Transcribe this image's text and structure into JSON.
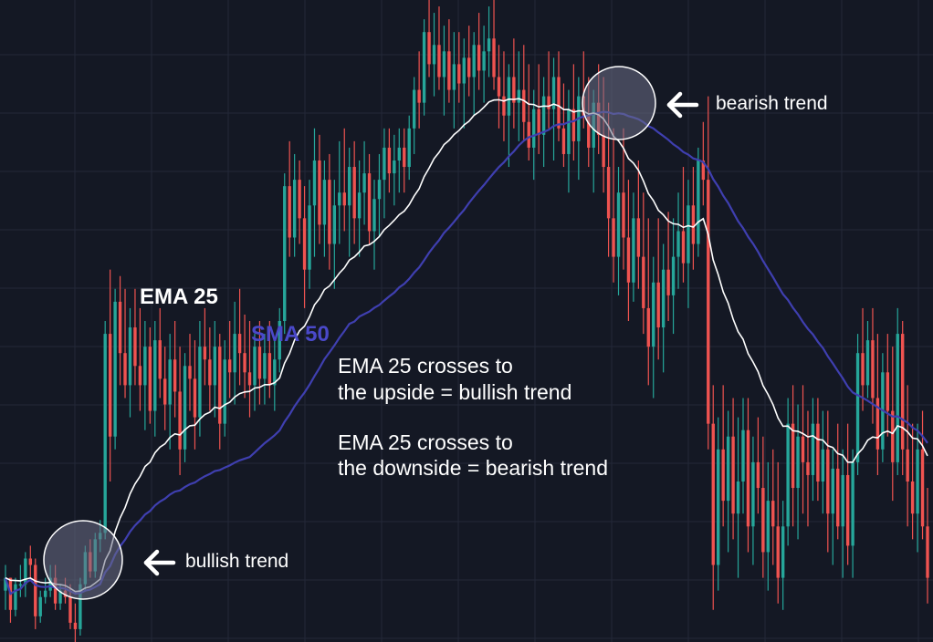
{
  "chart_data": {
    "type": "candlestick",
    "title": "",
    "xlabel": "",
    "ylabel": "",
    "axes_visible": false,
    "grid": true,
    "background": "#141824",
    "colors": {
      "up": "#26a69a",
      "down": "#ef5350",
      "ema": "#ffffff",
      "sma": "#3f3fb0",
      "circle_fill": "#6b7086"
    },
    "ylim": [
      0,
      100
    ],
    "indicators": [
      {
        "name": "EMA 25",
        "period": 25,
        "color": "#ffffff"
      },
      {
        "name": "SMA 50",
        "period": 50,
        "color": "#3f3fb0"
      }
    ],
    "candles": [
      [
        8,
        12,
        5,
        10
      ],
      [
        10,
        10,
        3,
        5
      ],
      [
        5,
        10,
        4,
        9
      ],
      [
        9,
        12,
        7,
        9
      ],
      [
        9,
        14,
        7,
        13
      ],
      [
        13,
        15,
        10,
        12
      ],
      [
        12,
        13,
        2,
        4
      ],
      [
        4,
        8,
        3,
        7
      ],
      [
        7,
        10,
        6,
        8
      ],
      [
        8,
        12,
        7,
        10
      ],
      [
        10,
        12,
        5,
        6
      ],
      [
        6,
        9,
        5,
        8
      ],
      [
        8,
        10,
        6,
        7
      ],
      [
        7,
        9,
        2,
        3
      ],
      [
        3,
        6,
        0,
        2
      ],
      [
        2,
        10,
        1,
        9
      ],
      [
        9,
        15,
        8,
        14
      ],
      [
        14,
        16,
        10,
        11
      ],
      [
        11,
        17,
        10,
        16
      ],
      [
        16,
        19,
        14,
        17
      ],
      [
        17,
        50,
        16,
        48
      ],
      [
        48,
        58,
        25,
        32
      ],
      [
        32,
        55,
        30,
        53
      ],
      [
        53,
        57,
        40,
        45
      ],
      [
        45,
        55,
        38,
        40
      ],
      [
        40,
        52,
        35,
        49
      ],
      [
        49,
        55,
        40,
        43
      ],
      [
        43,
        52,
        36,
        40
      ],
      [
        40,
        50,
        33,
        46
      ],
      [
        46,
        49,
        34,
        36
      ],
      [
        36,
        50,
        32,
        47
      ],
      [
        47,
        52,
        38,
        41
      ],
      [
        41,
        46,
        33,
        37
      ],
      [
        37,
        48,
        30,
        44
      ],
      [
        44,
        50,
        35,
        39
      ],
      [
        39,
        46,
        26,
        30
      ],
      [
        30,
        45,
        28,
        43
      ],
      [
        43,
        48,
        36,
        41
      ],
      [
        41,
        47,
        30,
        35
      ],
      [
        35,
        50,
        32,
        46
      ],
      [
        46,
        52,
        40,
        44
      ],
      [
        44,
        49,
        36,
        40
      ],
      [
        40,
        50,
        35,
        46
      ],
      [
        46,
        48,
        30,
        34
      ],
      [
        34,
        47,
        32,
        44
      ],
      [
        44,
        50,
        38,
        42
      ],
      [
        42,
        53,
        37,
        48
      ],
      [
        48,
        55,
        40,
        45
      ],
      [
        45,
        51,
        38,
        42
      ],
      [
        42,
        50,
        35,
        40
      ],
      [
        40,
        48,
        36,
        46
      ],
      [
        46,
        50,
        37,
        41
      ],
      [
        41,
        48,
        37,
        45
      ],
      [
        45,
        50,
        38,
        40
      ],
      [
        40,
        47,
        36,
        44
      ],
      [
        44,
        52,
        42,
        50
      ],
      [
        50,
        73,
        48,
        71
      ],
      [
        71,
        78,
        60,
        63
      ],
      [
        63,
        76,
        60,
        72
      ],
      [
        72,
        75,
        62,
        66
      ],
      [
        66,
        71,
        52,
        58
      ],
      [
        58,
        72,
        55,
        68
      ],
      [
        68,
        80,
        60,
        75
      ],
      [
        75,
        79,
        62,
        65
      ],
      [
        65,
        75,
        60,
        72
      ],
      [
        72,
        76,
        58,
        62
      ],
      [
        62,
        72,
        55,
        68
      ],
      [
        68,
        78,
        62,
        70
      ],
      [
        70,
        80,
        64,
        68
      ],
      [
        68,
        77,
        60,
        74
      ],
      [
        74,
        78,
        62,
        66
      ],
      [
        66,
        75,
        60,
        70
      ],
      [
        70,
        78,
        65,
        73
      ],
      [
        73,
        76,
        62,
        64
      ],
      [
        64,
        72,
        58,
        69
      ],
      [
        69,
        76,
        63,
        72
      ],
      [
        72,
        80,
        66,
        77
      ],
      [
        77,
        80,
        70,
        73
      ],
      [
        73,
        79,
        68,
        75
      ],
      [
        75,
        80,
        70,
        77
      ],
      [
        77,
        80,
        70,
        74
      ],
      [
        74,
        82,
        72,
        80
      ],
      [
        80,
        88,
        76,
        86
      ],
      [
        86,
        92,
        80,
        84
      ],
      [
        84,
        97,
        82,
        95
      ],
      [
        95,
        100,
        88,
        90
      ],
      [
        90,
        98,
        85,
        93
      ],
      [
        93,
        99,
        86,
        88
      ],
      [
        88,
        96,
        82,
        92
      ],
      [
        92,
        97,
        84,
        86
      ],
      [
        86,
        95,
        80,
        90
      ],
      [
        90,
        95,
        84,
        87
      ],
      [
        87,
        94,
        80,
        91
      ],
      [
        91,
        96,
        85,
        88
      ],
      [
        88,
        95,
        82,
        93
      ],
      [
        93,
        98,
        86,
        89
      ],
      [
        89,
        96,
        84,
        92
      ],
      [
        92,
        99,
        88,
        94
      ],
      [
        94,
        100,
        86,
        88
      ],
      [
        88,
        93,
        80,
        85
      ],
      [
        85,
        92,
        78,
        82
      ],
      [
        82,
        90,
        74,
        88
      ],
      [
        88,
        94,
        80,
        84
      ],
      [
        84,
        92,
        78,
        86
      ],
      [
        86,
        93,
        78,
        81
      ],
      [
        81,
        90,
        75,
        77
      ],
      [
        77,
        86,
        72,
        83
      ],
      [
        83,
        90,
        76,
        79
      ],
      [
        79,
        88,
        74,
        85
      ],
      [
        85,
        92,
        80,
        83
      ],
      [
        83,
        91,
        75,
        88
      ],
      [
        88,
        92,
        78,
        80
      ],
      [
        80,
        87,
        74,
        76
      ],
      [
        76,
        86,
        70,
        83
      ],
      [
        83,
        90,
        75,
        78
      ],
      [
        78,
        88,
        72,
        85
      ],
      [
        85,
        92,
        80,
        82
      ],
      [
        82,
        88,
        74,
        77
      ],
      [
        77,
        86,
        70,
        84
      ],
      [
        84,
        90,
        76,
        79
      ],
      [
        79,
        88,
        70,
        74
      ],
      [
        74,
        84,
        60,
        66
      ],
      [
        66,
        80,
        56,
        60
      ],
      [
        60,
        74,
        54,
        70
      ],
      [
        70,
        80,
        58,
        63
      ],
      [
        63,
        72,
        50,
        56
      ],
      [
        56,
        70,
        53,
        66
      ],
      [
        66,
        75,
        55,
        60
      ],
      [
        60,
        70,
        48,
        52
      ],
      [
        52,
        66,
        40,
        46
      ],
      [
        46,
        60,
        38,
        56
      ],
      [
        56,
        66,
        44,
        49
      ],
      [
        49,
        62,
        42,
        58
      ],
      [
        58,
        67,
        50,
        54
      ],
      [
        54,
        66,
        48,
        60
      ],
      [
        60,
        70,
        55,
        64
      ],
      [
        64,
        74,
        56,
        59
      ],
      [
        59,
        72,
        52,
        68
      ],
      [
        68,
        74,
        58,
        62
      ],
      [
        62,
        77,
        60,
        75
      ],
      [
        75,
        81,
        68,
        72
      ],
      [
        72,
        85,
        30,
        34
      ],
      [
        34,
        40,
        5,
        12
      ],
      [
        12,
        35,
        8,
        30
      ],
      [
        30,
        40,
        18,
        22
      ],
      [
        22,
        36,
        14,
        32
      ],
      [
        32,
        38,
        16,
        20
      ],
      [
        20,
        35,
        10,
        25
      ],
      [
        25,
        38,
        20,
        33
      ],
      [
        33,
        38,
        14,
        18
      ],
      [
        18,
        32,
        12,
        28
      ],
      [
        28,
        35,
        20,
        24
      ],
      [
        24,
        32,
        10,
        14
      ],
      [
        14,
        28,
        8,
        22
      ],
      [
        22,
        30,
        12,
        18
      ],
      [
        18,
        28,
        6,
        10
      ],
      [
        10,
        22,
        5,
        18
      ],
      [
        18,
        38,
        15,
        34
      ],
      [
        34,
        40,
        18,
        24
      ],
      [
        24,
        37,
        16,
        32
      ],
      [
        32,
        40,
        20,
        28
      ],
      [
        28,
        36,
        18,
        26
      ],
      [
        26,
        38,
        22,
        34
      ],
      [
        34,
        38,
        22,
        25
      ],
      [
        25,
        36,
        20,
        30
      ],
      [
        30,
        36,
        14,
        20
      ],
      [
        20,
        30,
        12,
        27
      ],
      [
        27,
        34,
        16,
        18
      ],
      [
        18,
        30,
        10,
        26
      ],
      [
        26,
        34,
        12,
        15
      ],
      [
        15,
        30,
        10,
        28
      ],
      [
        28,
        48,
        26,
        45
      ],
      [
        45,
        52,
        36,
        40
      ],
      [
        40,
        50,
        38,
        47
      ],
      [
        47,
        52,
        34,
        38
      ],
      [
        38,
        48,
        26,
        30
      ],
      [
        30,
        45,
        28,
        42
      ],
      [
        42,
        48,
        32,
        36
      ],
      [
        36,
        46,
        22,
        28
      ],
      [
        28,
        52,
        26,
        48
      ],
      [
        48,
        50,
        26,
        30
      ],
      [
        30,
        40,
        18,
        25
      ],
      [
        25,
        34,
        16,
        20
      ],
      [
        20,
        34,
        14,
        30
      ],
      [
        30,
        36,
        16,
        18
      ],
      [
        18,
        24,
        6,
        10
      ]
    ]
  },
  "labels": {
    "ema": "EMA 25",
    "sma": "SMA 50",
    "note1_line1": "EMA 25 crosses to",
    "note1_line2": "the upside = bullish trend",
    "note2_line1": "EMA 25 crosses to",
    "note2_line2": "the downside = bearish trend",
    "bullish": "bullish trend",
    "bearish": "bearish trend"
  }
}
